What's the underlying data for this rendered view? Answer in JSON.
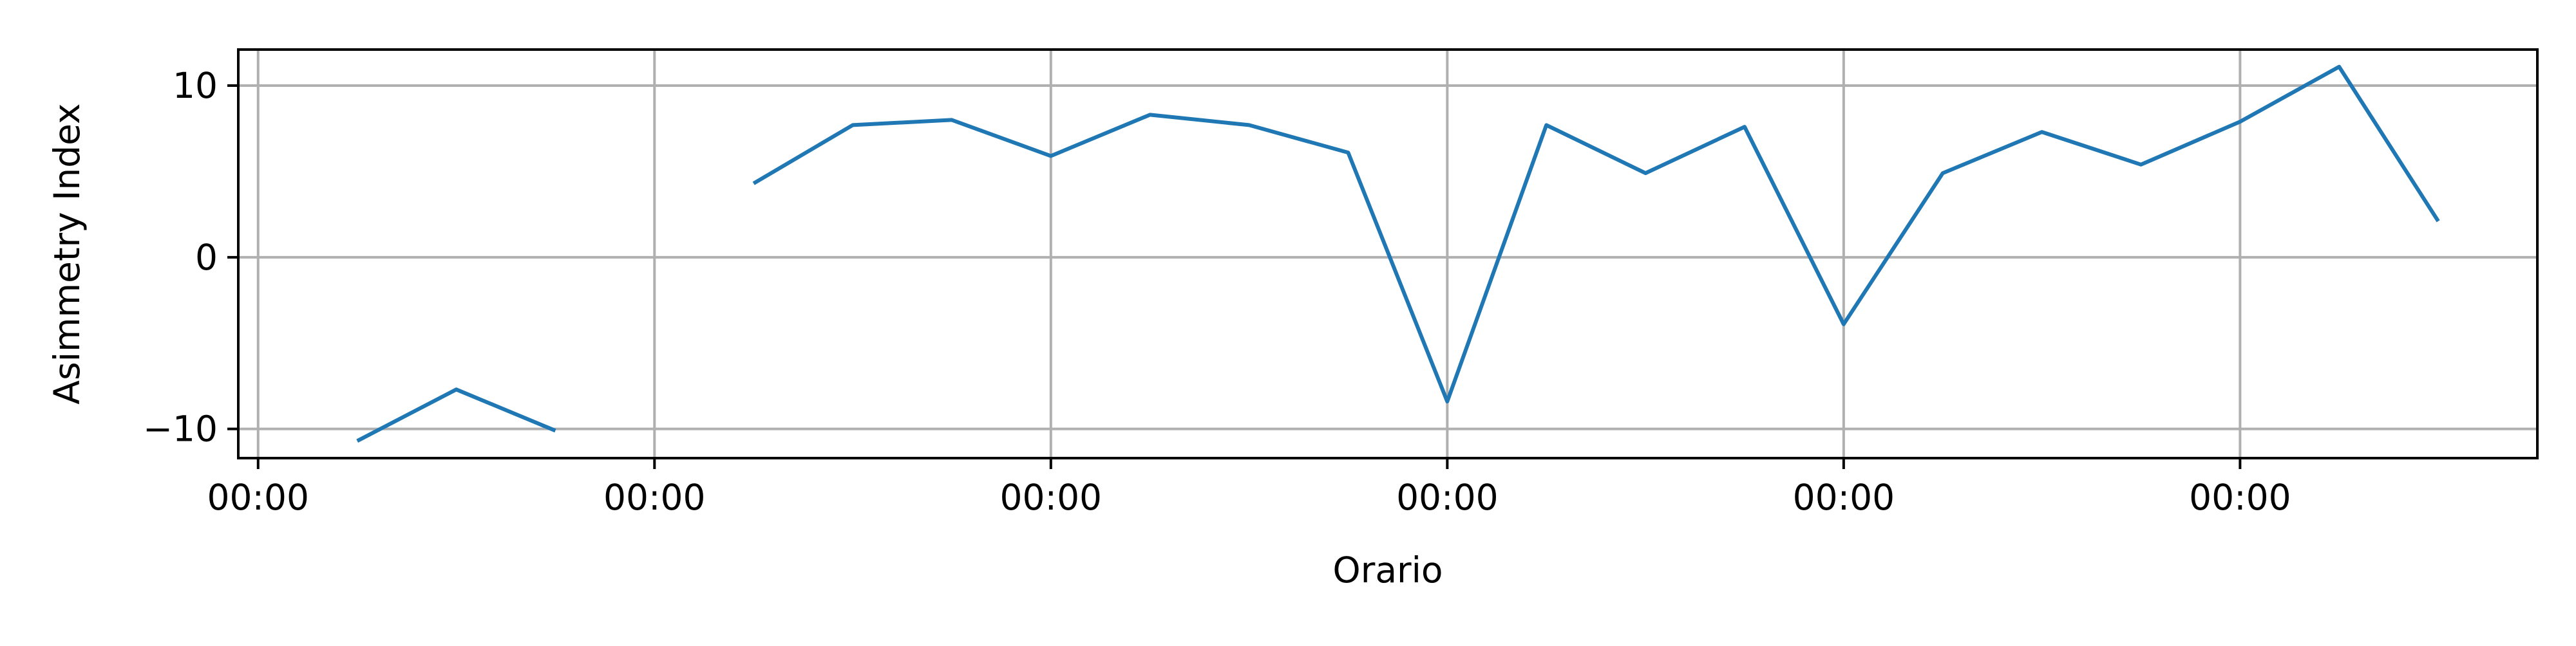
{
  "chart_data": {
    "type": "line",
    "xlabel": "Orario",
    "ylabel": "Asimmetry Index",
    "x_tick_labels": [
      "00:00",
      "00:00",
      "00:00",
      "00:00",
      "00:00",
      "00:00"
    ],
    "y_ticks": [
      -10,
      0,
      10
    ],
    "y_tick_labels": [
      "−10",
      "0",
      "10"
    ],
    "ylim": [
      -11.7,
      12.1
    ],
    "xlim": [
      -0.05,
      5.75
    ],
    "grid": true,
    "legend": false,
    "series": [
      {
        "color": "#1f77b4",
        "points": [
          {
            "x": 0.25,
            "y": -10.7
          },
          {
            "x": 0.5,
            "y": -7.7
          },
          {
            "x": 0.75,
            "y": -10.1
          },
          {
            "x": 1.0,
            "y": null
          },
          {
            "x": 1.25,
            "y": 4.3
          },
          {
            "x": 1.5,
            "y": 7.7
          },
          {
            "x": 1.75,
            "y": 8.0
          },
          {
            "x": 2.0,
            "y": 5.9
          },
          {
            "x": 2.25,
            "y": 8.3
          },
          {
            "x": 2.5,
            "y": 7.7
          },
          {
            "x": 2.75,
            "y": 6.1
          },
          {
            "x": 3.0,
            "y": -8.4
          },
          {
            "x": 3.25,
            "y": 7.7
          },
          {
            "x": 3.5,
            "y": 4.9
          },
          {
            "x": 3.75,
            "y": 7.6
          },
          {
            "x": 4.0,
            "y": -3.9
          },
          {
            "x": 4.25,
            "y": 4.9
          },
          {
            "x": 4.5,
            "y": 7.3
          },
          {
            "x": 4.75,
            "y": 5.4
          },
          {
            "x": 5.0,
            "y": 7.9
          },
          {
            "x": 5.25,
            "y": 11.1
          },
          {
            "x": 5.5,
            "y": 2.1
          }
        ]
      }
    ]
  }
}
